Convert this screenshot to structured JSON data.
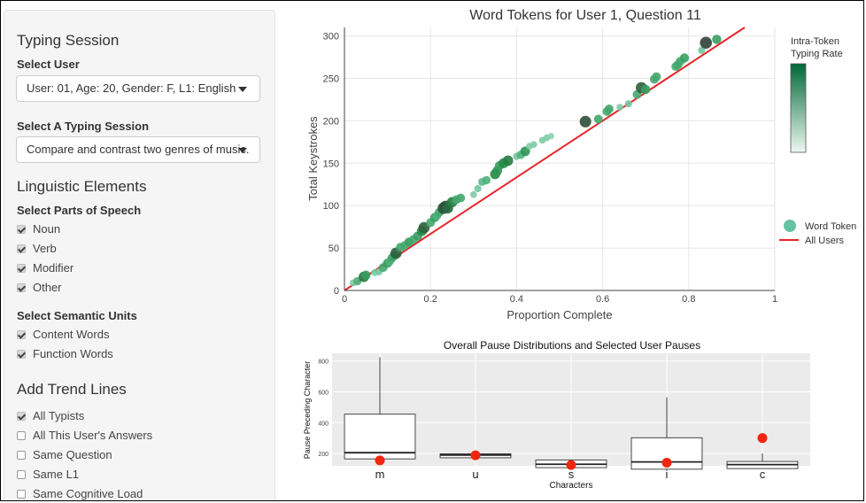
{
  "sidebar": {
    "typing_session_title": "Typing Session",
    "select_user_label": "Select User",
    "select_user_value": "User: 01, Age: 20, Gender: F, L1: English",
    "select_session_label": "Select A Typing Session",
    "select_session_value": "Compare and contrast two genres of music.",
    "linguistic_title": "Linguistic Elements",
    "pos_label": "Select Parts of Speech",
    "pos_items": [
      {
        "label": "Noun",
        "checked": true
      },
      {
        "label": "Verb",
        "checked": true
      },
      {
        "label": "Modifier",
        "checked": true
      },
      {
        "label": "Other",
        "checked": true
      }
    ],
    "semantic_label": "Select Semantic Units",
    "semantic_items": [
      {
        "label": "Content Words",
        "checked": true
      },
      {
        "label": "Function Words",
        "checked": true
      }
    ],
    "trend_title": "Add Trend Lines",
    "trend_items": [
      {
        "label": "All Typists",
        "checked": true
      },
      {
        "label": "All This User's Answers",
        "checked": false
      },
      {
        "label": "Same Question",
        "checked": false
      },
      {
        "label": "Same L1",
        "checked": false
      },
      {
        "label": "Same Cognitive Load",
        "checked": false
      }
    ]
  },
  "chart_data": [
    {
      "type": "scatter",
      "title": "Word Tokens for User 1, Question 11",
      "xlabel": "Proportion Complete",
      "ylabel": "Total Keystrokes",
      "xlim": [
        0,
        1
      ],
      "ylim": [
        0,
        310
      ],
      "x_ticks": [
        "0",
        "0.2",
        "0.4",
        "0.6",
        "0.8",
        "1"
      ],
      "y_ticks": [
        "0",
        "50",
        "100",
        "150",
        "200",
        "250",
        "300"
      ],
      "grid": true,
      "colorbar_title": [
        "Intra-Token",
        "Typing Rate"
      ],
      "colorbar_colors": [
        "#eef7f2",
        "#006837"
      ],
      "legend": {
        "position": "right",
        "items": [
          "Word Token",
          "All Users"
        ]
      },
      "legend_marker_color": "#66c2a4",
      "line_color": "#e8262b",
      "trend_line": {
        "name": "All Users",
        "points": [
          [
            0,
            0
          ],
          [
            0.93,
            310
          ]
        ]
      },
      "points": [
        {
          "x": 0.02,
          "y": 9,
          "r": 0.3
        },
        {
          "x": 0.03,
          "y": 11,
          "r": 0.5
        },
        {
          "x": 0.045,
          "y": 16,
          "r": 0.75
        },
        {
          "x": 0.05,
          "y": 18,
          "r": 0.6
        },
        {
          "x": 0.07,
          "y": 21,
          "r": 0.3
        },
        {
          "x": 0.08,
          "y": 22,
          "r": 0.35
        },
        {
          "x": 0.09,
          "y": 27,
          "r": 0.55
        },
        {
          "x": 0.1,
          "y": 32,
          "r": 0.6
        },
        {
          "x": 0.105,
          "y": 34,
          "r": 0.5
        },
        {
          "x": 0.11,
          "y": 38,
          "r": 0.55
        },
        {
          "x": 0.115,
          "y": 41,
          "r": 0.6
        },
        {
          "x": 0.12,
          "y": 44,
          "r": 0.85
        },
        {
          "x": 0.13,
          "y": 51,
          "r": 0.55
        },
        {
          "x": 0.14,
          "y": 53,
          "r": 0.55
        },
        {
          "x": 0.15,
          "y": 57,
          "r": 0.6
        },
        {
          "x": 0.16,
          "y": 60,
          "r": 0.55
        },
        {
          "x": 0.17,
          "y": 64,
          "r": 0.6
        },
        {
          "x": 0.18,
          "y": 70,
          "r": 0.7
        },
        {
          "x": 0.185,
          "y": 74,
          "r": 0.85
        },
        {
          "x": 0.2,
          "y": 80,
          "r": 0.55
        },
        {
          "x": 0.21,
          "y": 86,
          "r": 0.6
        },
        {
          "x": 0.215,
          "y": 88,
          "r": 0.5
        },
        {
          "x": 0.22,
          "y": 92,
          "r": 0.55
        },
        {
          "x": 0.23,
          "y": 97,
          "r": 0.9
        },
        {
          "x": 0.235,
          "y": 99,
          "r": 0.9
        },
        {
          "x": 0.24,
          "y": 97,
          "r": 0.8
        },
        {
          "x": 0.25,
          "y": 104,
          "r": 0.75
        },
        {
          "x": 0.26,
          "y": 107,
          "r": 0.55
        },
        {
          "x": 0.27,
          "y": 109,
          "r": 0.55
        },
        {
          "x": 0.3,
          "y": 113,
          "r": 0.3
        },
        {
          "x": 0.31,
          "y": 120,
          "r": 0.35
        },
        {
          "x": 0.32,
          "y": 128,
          "r": 0.45
        },
        {
          "x": 0.33,
          "y": 130,
          "r": 0.5
        },
        {
          "x": 0.35,
          "y": 137,
          "r": 0.7
        },
        {
          "x": 0.355,
          "y": 141,
          "r": 0.65
        },
        {
          "x": 0.36,
          "y": 147,
          "r": 0.6
        },
        {
          "x": 0.37,
          "y": 150,
          "r": 0.7
        },
        {
          "x": 0.38,
          "y": 153,
          "r": 0.75
        },
        {
          "x": 0.4,
          "y": 158,
          "r": 0.35
        },
        {
          "x": 0.41,
          "y": 160,
          "r": 0.5
        },
        {
          "x": 0.42,
          "y": 164,
          "r": 0.65
        },
        {
          "x": 0.43,
          "y": 170,
          "r": 0.3
        },
        {
          "x": 0.44,
          "y": 172,
          "r": 0.3
        },
        {
          "x": 0.46,
          "y": 177,
          "r": 0.3
        },
        {
          "x": 0.47,
          "y": 180,
          "r": 0.3
        },
        {
          "x": 0.48,
          "y": 182,
          "r": 0.25
        },
        {
          "x": 0.56,
          "y": 199,
          "r": 0.9
        },
        {
          "x": 0.59,
          "y": 202,
          "r": 0.55
        },
        {
          "x": 0.61,
          "y": 211,
          "r": 0.55
        },
        {
          "x": 0.615,
          "y": 214,
          "r": 0.55
        },
        {
          "x": 0.64,
          "y": 216,
          "r": 0.3
        },
        {
          "x": 0.66,
          "y": 220,
          "r": 0.35
        },
        {
          "x": 0.68,
          "y": 231,
          "r": 0.55
        },
        {
          "x": 0.69,
          "y": 239,
          "r": 0.85
        },
        {
          "x": 0.7,
          "y": 237,
          "r": 0.6
        },
        {
          "x": 0.72,
          "y": 249,
          "r": 0.55
        },
        {
          "x": 0.725,
          "y": 252,
          "r": 0.55
        },
        {
          "x": 0.77,
          "y": 264,
          "r": 0.55
        },
        {
          "x": 0.775,
          "y": 266,
          "r": 0.55
        },
        {
          "x": 0.78,
          "y": 270,
          "r": 0.55
        },
        {
          "x": 0.79,
          "y": 274,
          "r": 0.6
        },
        {
          "x": 0.83,
          "y": 283,
          "r": 0.35
        },
        {
          "x": 0.84,
          "y": 292,
          "r": 0.95
        },
        {
          "x": 0.865,
          "y": 296,
          "r": 0.6
        }
      ]
    },
    {
      "type": "box",
      "title": "Overall Pause Distributions and Selected User Pauses",
      "xlabel": "Characters",
      "ylabel": "Pause Preceding Character",
      "ylim": [
        120,
        850
      ],
      "y_ticks": [
        "200",
        "400",
        "600",
        "800"
      ],
      "categories": [
        "m",
        "u",
        "s",
        "i",
        "c"
      ],
      "boxes": [
        {
          "category": "m",
          "whisker_low": 165,
          "q1": 165,
          "median": 205,
          "q3": 455,
          "whisker_high": 825,
          "user_point": 155
        },
        {
          "category": "u",
          "whisker_low": 168,
          "q1": 172,
          "median": 190,
          "q3": 198,
          "whisker_high": 198,
          "user_point": 188
        },
        {
          "category": "s",
          "whisker_low": 108,
          "q1": 108,
          "median": 130,
          "q3": 158,
          "whisker_high": 162,
          "user_point": 125
        },
        {
          "category": "i",
          "whisker_low": 98,
          "q1": 98,
          "median": 145,
          "q3": 302,
          "whisker_high": 565,
          "user_point": 140
        },
        {
          "category": "c",
          "whisker_low": 100,
          "q1": 102,
          "median": 128,
          "q3": 148,
          "whisker_high": 200,
          "user_point": 300
        }
      ],
      "panel_color": "#ebebeb",
      "point_color": "#f0260e"
    }
  ]
}
